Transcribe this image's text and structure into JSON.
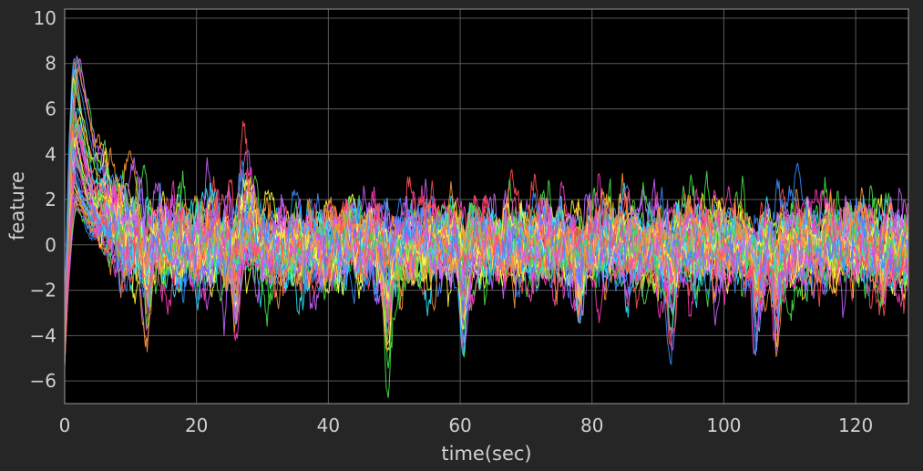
{
  "chart_data": {
    "type": "line",
    "title": "",
    "xlabel": "time(sec)",
    "ylabel": "feature",
    "xlim": [
      0,
      128
    ],
    "ylim": [
      -7,
      10.4
    ],
    "xticks": [
      0,
      20,
      40,
      60,
      80,
      100,
      120
    ],
    "yticks": [
      -6,
      -4,
      -2,
      0,
      2,
      4,
      6,
      8,
      10
    ],
    "xtick_labels": [
      "0",
      "20",
      "40",
      "60",
      "80",
      "100",
      "120"
    ],
    "ytick_labels": [
      "−6",
      "−4",
      "−2",
      "0",
      "2",
      "4",
      "6",
      "8",
      "10"
    ],
    "grid": true,
    "background": "#000000",
    "figure_background": "#262626",
    "text_color": "#d0d0d0",
    "grid_color": "#5a5a5a",
    "series_colors": [
      "#ff3cbe",
      "#28e6ff",
      "#ffff3c",
      "#46e646",
      "#ff5050",
      "#c864ff",
      "#3c8cff",
      "#ff9632"
    ],
    "series_count": 56,
    "peak_start": {
      "time": 1.8,
      "max": 8.6,
      "typical": 5.5
    },
    "burst": {
      "time": 27.5,
      "max": 3.9
    },
    "dips": [
      {
        "time": 12.5,
        "value": -3.5
      },
      {
        "time": 26,
        "value": -4.2
      },
      {
        "time": 49,
        "value": -4.7
      },
      {
        "time": 60.5,
        "value": -4.9
      },
      {
        "time": 78,
        "value": -3.7
      },
      {
        "time": 92,
        "value": -4.3
      },
      {
        "time": 105,
        "value": -4.0
      },
      {
        "time": 108,
        "value": -4.6
      },
      {
        "time": 124,
        "value": -2.9
      }
    ],
    "start_min": -5.4,
    "typical_range": [
      -2.5,
      2.5
    ],
    "note": "Dense overlay of many noisy feature traces; individual series values are not legible, traces are synthesized to match the visible envelope."
  }
}
